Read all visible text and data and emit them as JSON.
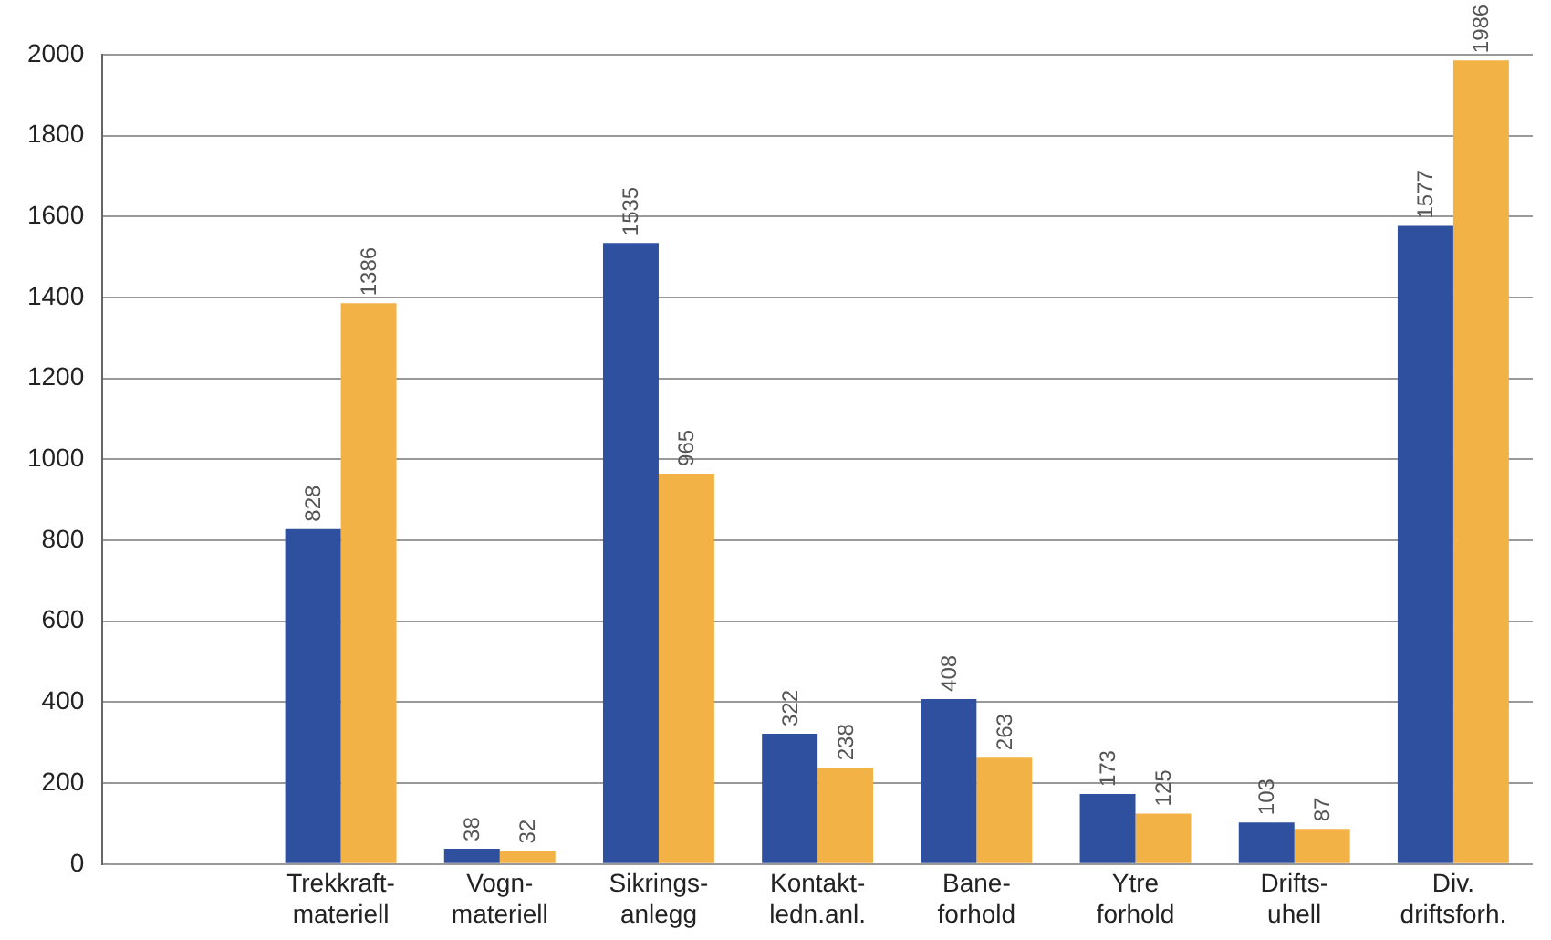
{
  "chart_data": {
    "type": "bar",
    "categories": [
      null,
      "Trekkraft-\nmateriell",
      "Vogn-\nmateriell",
      "Sikrings-\nanlegg",
      "Kontakt-\nledn.anl.",
      "Bane-\nforhold",
      "Ytre\nforhold",
      "Drifts-\nuhell",
      "Div.\ndriftsforh."
    ],
    "series": [
      {
        "color": "#2f4f9f",
        "values": [
          null,
          828,
          38,
          1535,
          322,
          408,
          173,
          103,
          1577
        ]
      },
      {
        "color": "#f2b246",
        "values": [
          null,
          1386,
          32,
          965,
          238,
          263,
          125,
          87,
          1986
        ]
      }
    ],
    "ylim": [
      0,
      2000
    ],
    "yticks": [
      0,
      200,
      400,
      600,
      800,
      1000,
      1200,
      1400,
      1600,
      1800,
      2000
    ],
    "grid": "y",
    "legend": false,
    "data_labels": true
  }
}
